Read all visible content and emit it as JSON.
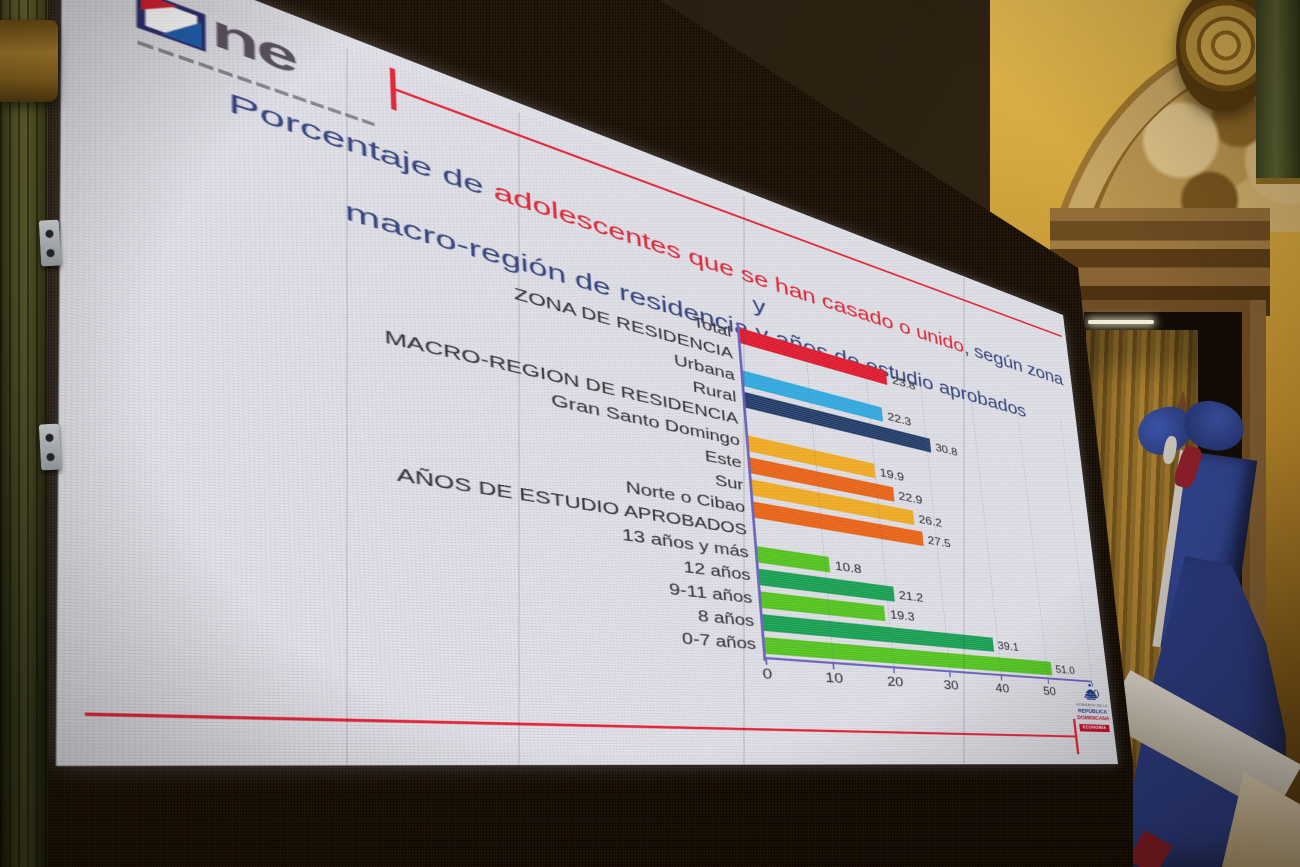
{
  "slide": {
    "logo_one": {
      "icon": "one-square-icon",
      "text": "ne"
    },
    "title": {
      "lead": "Porcentaje de ",
      "highlight": "adolescentes que se han casado o unido",
      "tail": ", según zona y",
      "line2": "macro-región de residencia y años de estudio aprobados",
      "color_main": "#35447e",
      "color_highlight": "#e02535"
    },
    "accent_rule_color": "#e62639",
    "gov_logo": {
      "icon": "capitol-dome-icon",
      "line1": "GOBIERNO DE LA",
      "line2": "REPÚBLICA",
      "line3": "DOMINICANA",
      "badge": "ECONOMÍA"
    }
  },
  "chart_data": {
    "type": "bar",
    "orientation": "horizontal",
    "title": "Porcentaje de adolescentes que se han casado o unido, según zona y macro-región de residencia y años de estudio aprobados",
    "xlabel": "",
    "ylabel": "",
    "xlim": [
      0,
      60
    ],
    "x_ticks": [
      0,
      10,
      20,
      30,
      40,
      50,
      60
    ],
    "grid": "dashed-vertical",
    "axis_color": "#6e65be",
    "legend": "none",
    "rows": [
      {
        "label": "Total",
        "value": 23.8,
        "color": "#df1428"
      },
      {
        "label": "ZONA DE RESIDENCIA",
        "header": true
      },
      {
        "label": "Urbana",
        "value": 22.3,
        "color": "#2ca6dd"
      },
      {
        "label": "Rural",
        "value": 30.8,
        "color": "#1e3765"
      },
      {
        "label": "MACRO-REGION DE RESIDENCIA",
        "header": true
      },
      {
        "label": "Gran Santo Domingo",
        "value": 19.9,
        "color": "#f0a81c"
      },
      {
        "label": "Este",
        "value": 22.9,
        "color": "#e95f10"
      },
      {
        "label": "Sur",
        "value": 26.2,
        "color": "#f0a81c"
      },
      {
        "label": "Norte o Cibao",
        "value": 27.5,
        "color": "#e95f10"
      },
      {
        "label": "AÑOS DE ESTUDIO APROBADOS",
        "header": true
      },
      {
        "label": "13 años y más",
        "value": 10.8,
        "color": "#4fc319"
      },
      {
        "label": "12 años",
        "value": 21.2,
        "color": "#129e4e"
      },
      {
        "label": "9-11 años",
        "value": 19.3,
        "color": "#4fc319"
      },
      {
        "label": "8 años",
        "value": 39.1,
        "color": "#129e4e"
      },
      {
        "label": "0-7 años",
        "value": 51.0,
        "color": "#4fc319"
      }
    ]
  }
}
